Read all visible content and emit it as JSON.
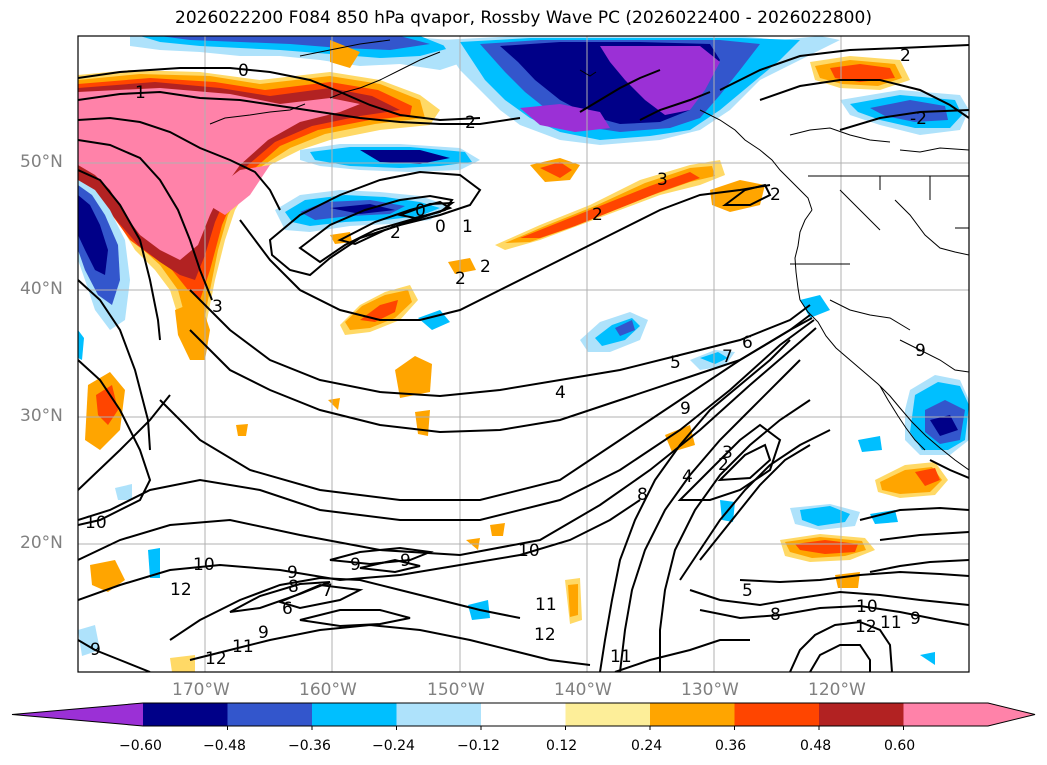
{
  "title": "2026022200 F084 850 hPa qvapor, Rossby Wave PC (2026022400 - 2026022800)",
  "lat_labels": [
    "50°N",
    "40°N",
    "30°N",
    "20°N"
  ],
  "lon_labels": [
    "170°W",
    "160°W",
    "150°W",
    "140°W",
    "130°W",
    "120°W"
  ],
  "colorbar": {
    "ticks": [
      "−0.60",
      "−0.48",
      "−0.36",
      "−0.24",
      "−0.12",
      "0.12",
      "0.24",
      "0.36",
      "0.48",
      "0.60"
    ],
    "colors": [
      "#9b30d6",
      "#000088",
      "#3356cc",
      "#00bfff",
      "#aee2fb",
      "#ffffff",
      "#fdee99",
      "#ffa500",
      "#ff4500",
      "#b22222",
      "#ff82a9",
      "#ff82a9"
    ]
  },
  "contour_labels": [
    "0",
    "1",
    "2",
    "0",
    "2",
    "-2",
    "0",
    "1",
    "2",
    "3",
    "2",
    "2",
    "2",
    "3",
    "2",
    "4",
    "5",
    "6",
    "7",
    "9",
    "2",
    "3",
    "4",
    "8",
    "10",
    "10",
    "9",
    "8",
    "7",
    "6",
    "9",
    "11",
    "12",
    "9",
    "10",
    "11",
    "12",
    "11",
    "12",
    "5",
    "8",
    "10",
    "11",
    "9",
    "12",
    "9",
    "9",
    "9"
  ],
  "colors": {
    "land_outline": "#000000",
    "grid": "#b0b0b0",
    "axis_label": "#808080"
  }
}
